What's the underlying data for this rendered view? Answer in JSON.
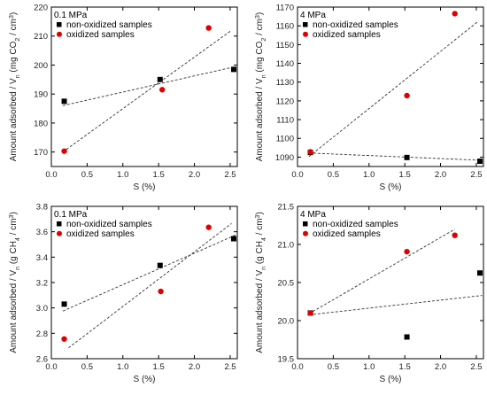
{
  "colors": {
    "non_oxidized": "#000000",
    "oxidized": "#e00000"
  },
  "chart_data": [
    {
      "type": "scatter",
      "annotation": "0.1 MPa",
      "xlabel": "S (%)",
      "ylabel": "Amount adsorbed / V",
      "ylabel_sub": "n",
      "ylabel_unit": " (mg CO",
      "ylabel_unit_sub": "2",
      "ylabel_unit2": " / cm",
      "ylabel_unit_sup": "3",
      "ylabel_unit3": ")",
      "xlim": [
        0,
        2.6
      ],
      "ylim": [
        165,
        220
      ],
      "xticks": [
        "0.0",
        "0.5",
        "1.0",
        "1.5",
        "2.0",
        "2.5"
      ],
      "yticks": [
        "170",
        "180",
        "190",
        "200",
        "210",
        "220"
      ],
      "xtick_values": [
        0,
        0.5,
        1.0,
        1.5,
        2.0,
        2.5
      ],
      "ytick_values": [
        170,
        180,
        190,
        200,
        210,
        220
      ],
      "legend_position": "top-left",
      "series": [
        {
          "name": "non-oxidized samples",
          "marker": "square",
          "x": [
            0.18,
            1.52,
            2.55
          ],
          "y": [
            187.5,
            195,
            198.5
          ],
          "fit": [
            [
              0.16,
              186
            ],
            [
              2.58,
              199.5
            ]
          ]
        },
        {
          "name": "oxidized samples",
          "marker": "circle",
          "x": [
            0.18,
            1.55,
            2.2
          ],
          "y": [
            170.3,
            191.5,
            212.8
          ],
          "fit": [
            [
              0.16,
              170
            ],
            [
              2.52,
              212
            ]
          ]
        }
      ]
    },
    {
      "type": "scatter",
      "annotation": "4 MPa",
      "xlabel": "S (%)",
      "ylabel": "Amount adsorbed / V",
      "ylabel_sub": "n",
      "ylabel_unit": " (mg CO",
      "ylabel_unit_sub": "2",
      "ylabel_unit2": " / cm",
      "ylabel_unit_sup": "3",
      "ylabel_unit3": ")",
      "xlim": [
        0,
        2.6
      ],
      "ylim": [
        1085,
        1170
      ],
      "xticks": [
        "0.0",
        "0.5",
        "1.0",
        "1.5",
        "2.0",
        "2.5"
      ],
      "yticks": [
        "1090",
        "1100",
        "1110",
        "1120",
        "1130",
        "1140",
        "1150",
        "1160",
        "1170"
      ],
      "xtick_values": [
        0,
        0.5,
        1.0,
        1.5,
        2.0,
        2.5
      ],
      "ytick_values": [
        1090,
        1100,
        1110,
        1120,
        1130,
        1140,
        1150,
        1160,
        1170
      ],
      "legend_position": "top-left",
      "series": [
        {
          "name": "non-oxidized samples",
          "marker": "square",
          "x": [
            0.18,
            1.53,
            2.55
          ],
          "y": [
            1092.5,
            1089.8,
            1087.8
          ],
          "fit": [
            [
              0.16,
              1092.2
            ],
            [
              2.58,
              1088.3
            ]
          ]
        },
        {
          "name": "oxidized samples",
          "marker": "circle",
          "x": [
            0.18,
            1.53,
            2.2
          ],
          "y": [
            1092.8,
            1122.8,
            1166.5
          ],
          "fit": [
            [
              0.16,
              1090.3
            ],
            [
              2.52,
              1162.2
            ]
          ]
        }
      ]
    },
    {
      "type": "scatter",
      "annotation": "0.1 MPa",
      "xlabel": "S (%)",
      "ylabel": "Amount adsorbed / V",
      "ylabel_sub": "n",
      "ylabel_unit": " (g CH",
      "ylabel_unit_sub": "4",
      "ylabel_unit2": " / cm",
      "ylabel_unit_sup": "3",
      "ylabel_unit3": ")",
      "xlim": [
        0,
        2.6
      ],
      "ylim": [
        2.6,
        3.8
      ],
      "xticks": [
        "0.0",
        "0.5",
        "1.0",
        "1.5",
        "2.0",
        "2.5"
      ],
      "yticks": [
        "2.6",
        "2.8",
        "3.0",
        "3.2",
        "3.4",
        "3.6",
        "3.8"
      ],
      "xtick_values": [
        0,
        0.5,
        1.0,
        1.5,
        2.0,
        2.5
      ],
      "ytick_values": [
        2.6,
        2.8,
        3.0,
        3.2,
        3.4,
        3.6,
        3.8
      ],
      "legend_position": "top-left",
      "series": [
        {
          "name": "non-oxidized samples",
          "marker": "square",
          "x": [
            0.18,
            1.52,
            2.55
          ],
          "y": [
            3.03,
            3.335,
            3.545
          ],
          "fit": [
            [
              0.16,
              2.975
            ],
            [
              2.58,
              3.575
            ]
          ]
        },
        {
          "name": "oxidized samples",
          "marker": "circle",
          "x": [
            0.18,
            1.53,
            2.2
          ],
          "y": [
            2.755,
            3.13,
            3.635
          ],
          "fit": [
            [
              0.24,
              2.685
            ],
            [
              2.52,
              3.665
            ]
          ]
        }
      ]
    },
    {
      "type": "scatter",
      "annotation": "4 MPa",
      "xlabel": "S (%)",
      "ylabel": "Amount adsorbed / V",
      "ylabel_sub": "n",
      "ylabel_unit": " (g CH",
      "ylabel_unit_sub": "4",
      "ylabel_unit2": " / cm",
      "ylabel_unit_sup": "3",
      "ylabel_unit3": ")",
      "xlim": [
        0,
        2.6
      ],
      "ylim": [
        19.5,
        21.5
      ],
      "xticks": [
        "0.0",
        "0.5",
        "1.0",
        "1.5",
        "2.0",
        "2.5"
      ],
      "yticks": [
        "19.5",
        "20.0",
        "20.5",
        "21.0",
        "21.5"
      ],
      "xtick_values": [
        0,
        0.5,
        1.0,
        1.5,
        2.0,
        2.5
      ],
      "ytick_values": [
        19.5,
        20.0,
        20.5,
        21.0,
        21.5
      ],
      "legend_position": "top-left",
      "series": [
        {
          "name": "non-oxidized samples",
          "marker": "square",
          "x": [
            0.18,
            1.53,
            2.55
          ],
          "y": [
            20.1,
            19.785,
            20.625
          ],
          "fit": [
            [
              0.16,
              20.075
            ],
            [
              2.58,
              20.33
            ]
          ]
        },
        {
          "name": "oxidized samples",
          "marker": "circle",
          "x": [
            0.18,
            1.53,
            2.2
          ],
          "y": [
            20.1,
            20.905,
            21.12
          ],
          "fit": [
            [
              0.16,
              20.09
            ],
            [
              2.2,
              21.2
            ]
          ]
        }
      ]
    }
  ]
}
